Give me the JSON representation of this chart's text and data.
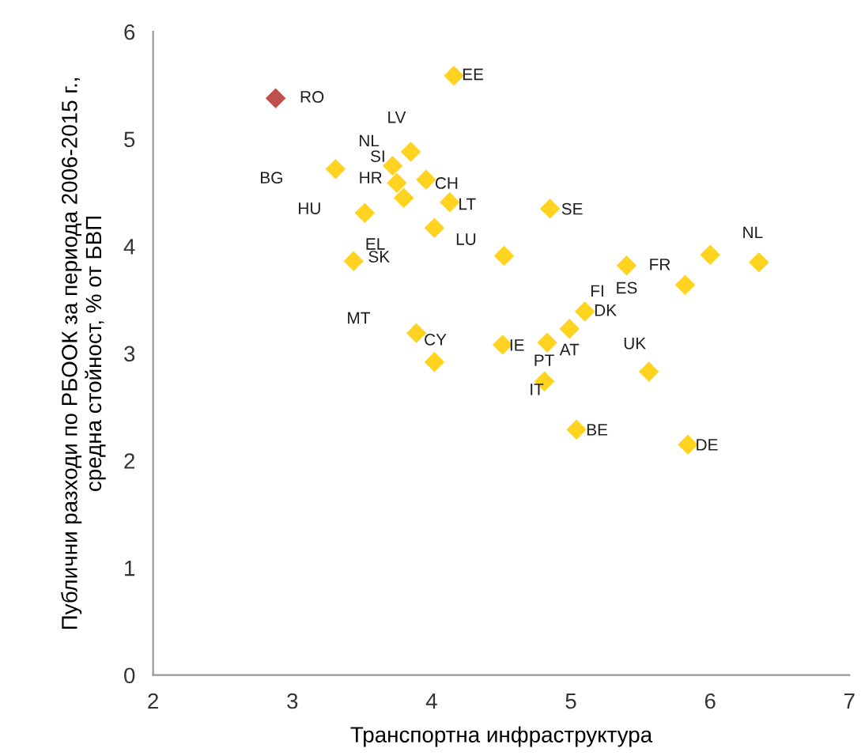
{
  "chart_data": {
    "type": "scatter",
    "xlabel": "Транспортна инфраструктура",
    "ylabel": "Публични разходи по РБООК за периода 2006-2015 г.,\nсредна стойност, % от БВП",
    "xlim": [
      2,
      7
    ],
    "xticks": [
      2,
      3,
      4,
      5,
      6,
      7
    ],
    "ylim": [
      0,
      6
    ],
    "yticks": [
      0,
      1,
      2,
      3,
      4,
      5,
      6
    ],
    "grid": false,
    "legend": false,
    "marker": "diamond",
    "series": [
      {
        "color": "#ffd320",
        "x": [
          4.16,
          3.85,
          3.31,
          3.72,
          3.75,
          3.8,
          3.96,
          4.13,
          4.02,
          3.52,
          3.44,
          3.89,
          4.02,
          4.85,
          4.52,
          5.4,
          5.82,
          6.0,
          6.35,
          5.1,
          4.99,
          4.51,
          4.83,
          4.81,
          5.56,
          5.04,
          5.84
        ],
        "values": [
          5.59,
          4.88,
          4.72,
          4.75,
          4.59,
          4.45,
          4.62,
          4.41,
          4.17,
          4.31,
          3.86,
          3.19,
          2.92,
          4.35,
          3.91,
          3.82,
          3.64,
          3.92,
          3.85,
          3.39,
          3.23,
          3.08,
          3.1,
          2.74,
          2.83,
          2.29,
          2.15
        ]
      },
      {
        "color": "#c0504d",
        "x": [
          2.88
        ],
        "values": [
          5.38
        ]
      }
    ],
    "annotations": [
      {
        "text": "RO",
        "x": 2.88,
        "y": 5.38
      },
      {
        "text": "EE",
        "x": 4.16,
        "y": 5.59
      },
      {
        "text": "LV",
        "x": 3.85,
        "y": 4.88
      },
      {
        "text": "NL",
        "x": 3.72,
        "y": 4.75
      },
      {
        "text": "SI",
        "x": 3.75,
        "y": 4.59
      },
      {
        "text": "HR",
        "x": 3.8,
        "y": 4.45
      },
      "BG",
      {
        "text": "CH",
        "x": 3.96,
        "y": 4.62
      },
      {
        "text": "LT",
        "x": 4.13,
        "y": 4.41
      },
      {
        "text": "HU",
        "x": 3.52,
        "y": 4.31
      },
      {
        "text": "LU",
        "x": 4.02,
        "y": 4.17
      },
      "EL",
      {
        "text": "SK",
        "x": 3.44,
        "y": 3.86
      },
      "MT",
      {
        "text": "CY",
        "x": 3.89,
        "y": 3.19
      },
      {
        "text": "SE",
        "x": 4.85,
        "y": 4.35
      },
      {
        "text": "NL",
        "x": 6.35,
        "y": 3.85
      },
      {
        "text": "FR",
        "x": 5.82,
        "y": 3.64
      },
      {
        "text": "ES",
        "x": 5.4,
        "y": 3.82
      },
      "FI",
      {
        "text": "DK",
        "x": 5.1,
        "y": 3.39
      },
      {
        "text": "UK",
        "x": 5.56,
        "y": 2.83
      },
      {
        "text": "IE",
        "x": 4.51,
        "y": 3.08
      },
      {
        "text": "AT",
        "x": 4.99,
        "y": 3.23
      },
      {
        "text": "PT",
        "x": 4.83,
        "y": 3.1
      },
      {
        "text": "IT",
        "x": 4.81,
        "y": 2.74
      },
      {
        "text": "BE",
        "x": 5.04,
        "y": 2.29
      },
      {
        "text": "DE",
        "x": 5.84,
        "y": 2.15
      }
    ]
  }
}
